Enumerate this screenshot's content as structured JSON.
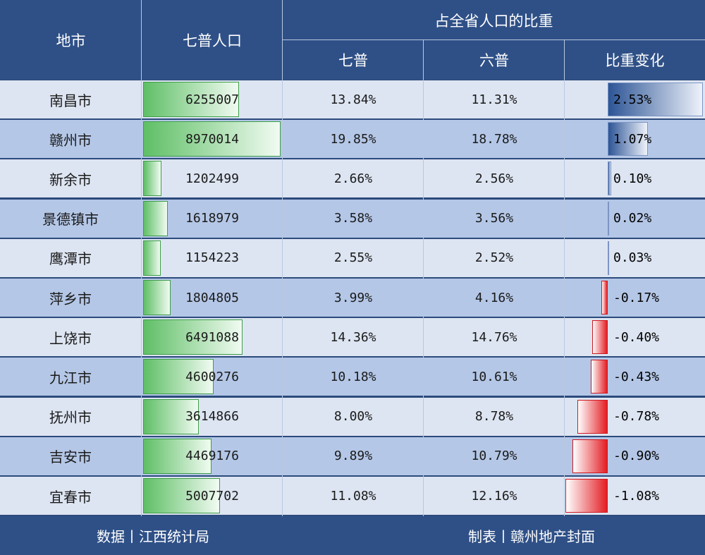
{
  "chart_data": {
    "type": "table",
    "headers": {
      "city": "地市",
      "population": "七普人口",
      "share_group": "占全省人口的比重",
      "seventh": "七普",
      "sixth": "六普",
      "change": "比重变化"
    },
    "rows": [
      {
        "city": "南昌市",
        "population": 6255007,
        "population_text": "6255007",
        "seventh": "13.84%",
        "sixth": "11.31%",
        "change": 2.53,
        "change_text": "2.53%"
      },
      {
        "city": "赣州市",
        "population": 8970014,
        "population_text": "8970014",
        "seventh": "19.85%",
        "sixth": "18.78%",
        "change": 1.07,
        "change_text": "1.07%"
      },
      {
        "city": "新余市",
        "population": 1202499,
        "population_text": "1202499",
        "seventh": "2.66%",
        "sixth": "2.56%",
        "change": 0.1,
        "change_text": "0.10%"
      },
      {
        "city": "景德镇市",
        "population": 1618979,
        "population_text": "1618979",
        "seventh": "3.58%",
        "sixth": "3.56%",
        "change": 0.02,
        "change_text": "0.02%"
      },
      {
        "city": "鹰潭市",
        "population": 1154223,
        "population_text": "1154223",
        "seventh": "2.55%",
        "sixth": "2.52%",
        "change": 0.03,
        "change_text": "0.03%"
      },
      {
        "city": "萍乡市",
        "population": 1804805,
        "population_text": "1804805",
        "seventh": "3.99%",
        "sixth": "4.16%",
        "change": -0.17,
        "change_text": "-0.17%"
      },
      {
        "city": "上饶市",
        "population": 6491088,
        "population_text": "6491088",
        "seventh": "14.36%",
        "sixth": "14.76%",
        "change": -0.4,
        "change_text": "-0.40%"
      },
      {
        "city": "九江市",
        "population": 4600276,
        "population_text": "4600276",
        "seventh": "10.18%",
        "sixth": "10.61%",
        "change": -0.43,
        "change_text": "-0.43%"
      },
      {
        "city": "抚州市",
        "population": 3614866,
        "population_text": "3614866",
        "seventh": "8.00%",
        "sixth": "8.78%",
        "change": -0.78,
        "change_text": "-0.78%"
      },
      {
        "city": "吉安市",
        "population": 4469176,
        "population_text": "4469176",
        "seventh": "9.89%",
        "sixth": "10.79%",
        "change": -0.9,
        "change_text": "-0.90%"
      },
      {
        "city": "宜春市",
        "population": 5007702,
        "population_text": "5007702",
        "seventh": "11.08%",
        "sixth": "12.16%",
        "change": -1.08,
        "change_text": "-1.08%"
      }
    ],
    "footer": {
      "source": "数据丨江西统计局",
      "credit": "制表丨赣州地产封面"
    },
    "watermark": "赣州地产封面",
    "colors": {
      "header_bg": "#2f5087",
      "row_light": "#dde5f2",
      "row_dark": "#b4c7e7",
      "bar_green": "#5fbf66",
      "bar_blue": "#2d5596",
      "bar_red": "#e31e24"
    }
  }
}
